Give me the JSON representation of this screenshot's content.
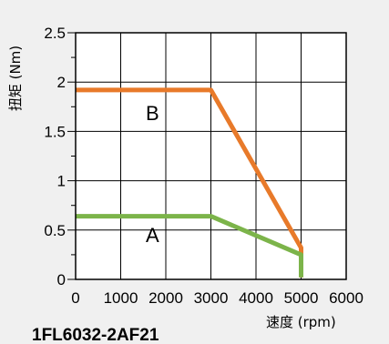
{
  "chart_data": {
    "type": "line",
    "title": "1FL6032-2AF21",
    "xlabel": "速度 (rpm)",
    "ylabel": "扭矩 (Nm)",
    "xlim": [
      0,
      6000
    ],
    "ylim": [
      0,
      2.5
    ],
    "x_ticks": [
      "0",
      "1000",
      "2000",
      "3000",
      "4000",
      "5000",
      "6000"
    ],
    "y_ticks": [
      "0",
      "0.5",
      "1",
      "1.5",
      "2",
      "2.5"
    ],
    "grid": true,
    "colors": {
      "B": "#e87a2a",
      "A": "#7cb44a"
    },
    "series": [
      {
        "name": "B",
        "x": [
          0,
          3000,
          5000,
          5000
        ],
        "y": [
          1.92,
          1.92,
          0.32,
          0.02
        ]
      },
      {
        "name": "A",
        "x": [
          0,
          3000,
          5000,
          5000
        ],
        "y": [
          0.64,
          0.64,
          0.25,
          0.02
        ]
      }
    ]
  }
}
